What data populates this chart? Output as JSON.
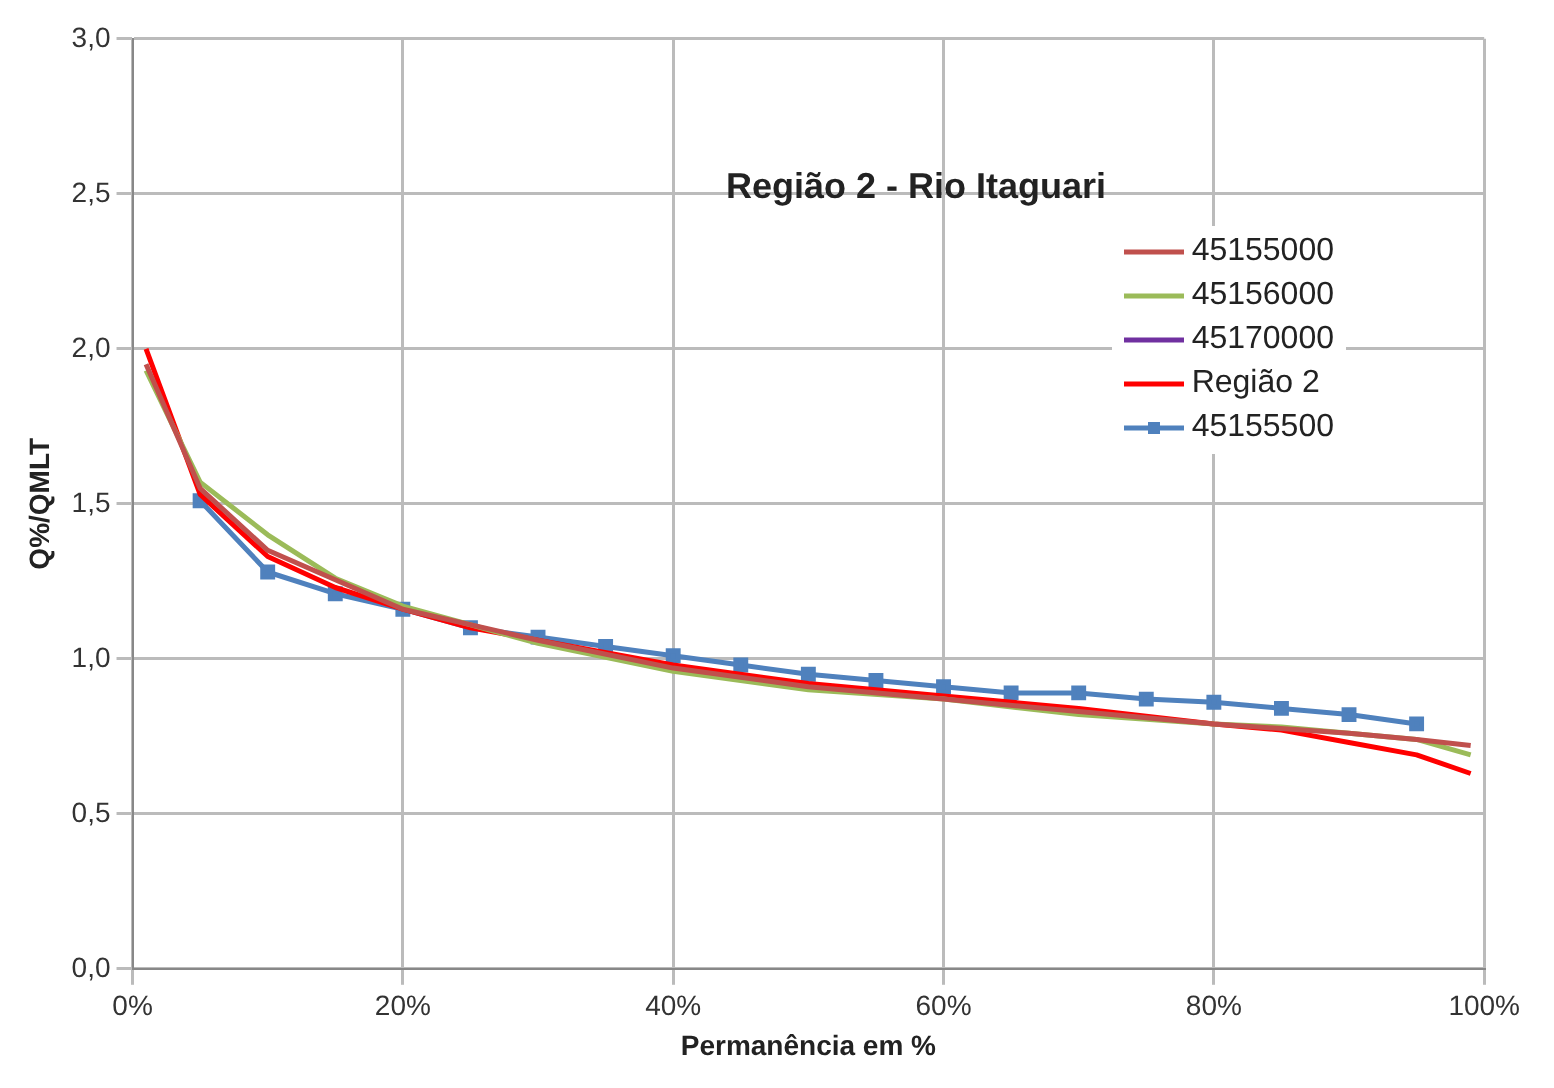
{
  "chart_data": {
    "type": "line",
    "title": "Região 2 - Rio Itaguari",
    "xlabel": "Permanência em %",
    "ylabel": "Q%/QMLT",
    "xlim": [
      0,
      100
    ],
    "xticks": [
      {
        "value": 0,
        "label": "0%"
      },
      {
        "value": 20,
        "label": "20%"
      },
      {
        "value": 40,
        "label": "40%"
      },
      {
        "value": 60,
        "label": "60%"
      },
      {
        "value": 80,
        "label": "80%"
      },
      {
        "value": 100,
        "label": "100%"
      }
    ],
    "ylim": [
      0,
      3
    ],
    "yticks": [
      {
        "value": 0,
        "label": "0,0"
      },
      {
        "value": 0.5,
        "label": "0,5"
      },
      {
        "value": 1,
        "label": "1,0"
      },
      {
        "value": 1.5,
        "label": "1,5"
      },
      {
        "value": 2,
        "label": "2,0"
      },
      {
        "value": 2.5,
        "label": "2,5"
      },
      {
        "value": 3,
        "label": "3,0"
      }
    ],
    "grid": true,
    "legend": "top right",
    "marker": "none",
    "line_style": "solid",
    "series": [
      {
        "name": "45155000",
        "color": "#c0504d",
        "x": [
          1,
          5,
          10,
          20,
          30,
          40,
          50,
          60,
          70,
          80,
          90,
          95,
          99
        ],
        "values": [
          1.95,
          1.55,
          1.35,
          1.16,
          1.06,
          0.97,
          0.91,
          0.87,
          0.83,
          0.79,
          0.76,
          0.74,
          0.72
        ]
      },
      {
        "name": "45156000",
        "color": "#9bbb59",
        "x": [
          1,
          5,
          10,
          15,
          20,
          30,
          40,
          50,
          60,
          70,
          80,
          85,
          95,
          99
        ],
        "values": [
          1.93,
          1.57,
          1.4,
          1.26,
          1.17,
          1.05,
          0.96,
          0.9,
          0.87,
          0.82,
          0.79,
          0.78,
          0.74,
          0.69
        ]
      },
      {
        "name": "45170000",
        "color": "#7030a0"
      },
      {
        "name": "Região 2",
        "color": "#ff0000",
        "x": [
          1,
          5,
          10,
          15,
          20,
          25,
          30,
          40,
          50,
          60,
          70,
          80,
          85,
          90,
          95,
          99
        ],
        "values": [
          2.0,
          1.53,
          1.33,
          1.23,
          1.16,
          1.1,
          1.06,
          0.98,
          0.92,
          0.88,
          0.84,
          0.79,
          0.77,
          0.73,
          0.69,
          0.63
        ]
      },
      {
        "name": "45155500",
        "color": "#4f81bd",
        "marker": "square",
        "x": [
          5,
          10,
          15,
          20,
          25,
          30,
          35,
          40,
          45,
          50,
          55,
          60,
          65,
          70,
          75,
          80,
          85,
          90,
          95
        ],
        "values": [
          1.51,
          1.28,
          1.21,
          1.16,
          1.1,
          1.07,
          1.04,
          1.01,
          0.98,
          0.95,
          0.93,
          0.91,
          0.89,
          0.89,
          0.87,
          0.86,
          0.84,
          0.82,
          0.79
        ]
      }
    ]
  }
}
